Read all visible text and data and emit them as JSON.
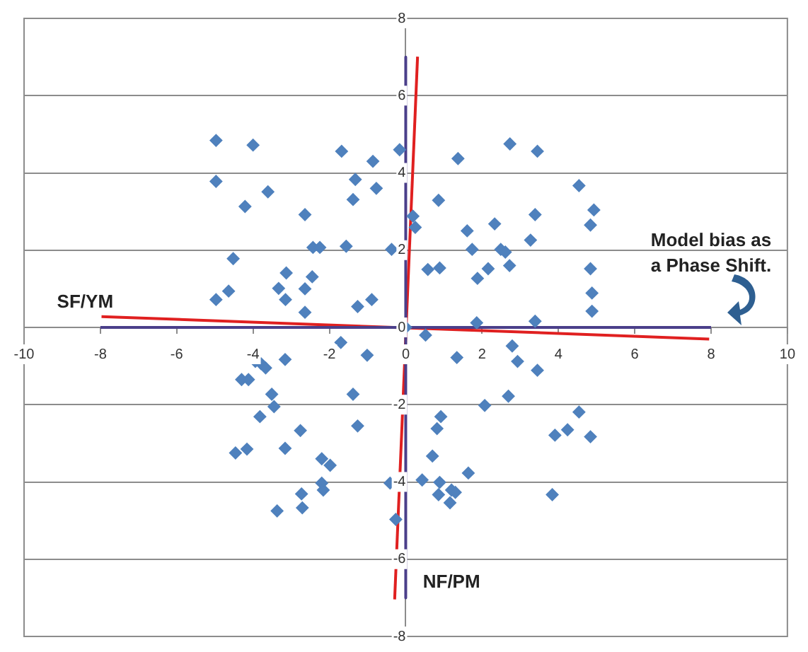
{
  "chart_data": {
    "type": "scatter",
    "xlim": [
      -10,
      10
    ],
    "ylim": [
      -8,
      8
    ],
    "xticks": [
      -10,
      -8,
      -6,
      -4,
      -2,
      0,
      2,
      4,
      6,
      8,
      10
    ],
    "yticks": [
      -8,
      -6,
      -4,
      -2,
      0,
      2,
      4,
      6,
      8
    ],
    "grid": "y",
    "legend": false,
    "annotations": [
      "SF/YM",
      "Model bias as a Phase Shift.",
      "NF/PM"
    ],
    "series": [
      {
        "marker": "diamond",
        "color": "#4f81bd",
        "x": [
          -4.97,
          -4.0,
          -1.68,
          -0.16,
          -0.86,
          -4.97,
          -1.32,
          -0.77,
          -3.61,
          -1.38,
          -4.21,
          -2.64,
          0.19,
          0.25,
          -2.43,
          -2.25,
          -1.56,
          -0.37,
          -4.52,
          -3.13,
          -2.45,
          -3.33,
          -2.64,
          -4.64,
          -4.97,
          -3.15,
          -0.89,
          -1.26,
          -2.64,
          0,
          2.73,
          3.45,
          1.37,
          4.54,
          0.86,
          4.93,
          3.39,
          2.33,
          4.84,
          1.61,
          3.27,
          1.74,
          2.49,
          2.61,
          2.72,
          0.58,
          0.89,
          2.16,
          4.84,
          1.88,
          4.88,
          4.88,
          1.86,
          3.39,
          -1.7,
          -1.01,
          -3.16,
          -3.94,
          -3.79,
          -3.67,
          -4.3,
          -4.12,
          -3.51,
          -1.38,
          -3.45,
          -3.82,
          -1.26,
          -2.76,
          -4.46,
          -4.16,
          -3.16,
          -2.2,
          -1.98,
          -0.41,
          -2.2,
          -2.16,
          -2.73,
          -3.37,
          -2.71,
          -0.26,
          0.52,
          2.79,
          2.93,
          1.34,
          3.45,
          2.69,
          2.07,
          4.54,
          0.92,
          0.82,
          4.24,
          3.91,
          4.84,
          0.7,
          1.64,
          0.43,
          0.89,
          0.86,
          1.2,
          1.3,
          1.16,
          3.84
        ],
        "values": [
          4.84,
          4.72,
          4.56,
          4.6,
          4.3,
          3.78,
          3.83,
          3.6,
          3.51,
          3.31,
          3.13,
          2.92,
          2.88,
          2.59,
          2.07,
          2.07,
          2.1,
          2.02,
          1.78,
          1.41,
          1.31,
          1.01,
          1.0,
          0.94,
          0.72,
          0.72,
          0.72,
          0.54,
          0.39,
          0,
          4.75,
          4.56,
          4.37,
          3.67,
          3.29,
          3.04,
          2.92,
          2.68,
          2.65,
          2.5,
          2.26,
          2.02,
          2.02,
          1.95,
          1.6,
          1.5,
          1.54,
          1.52,
          1.52,
          1.27,
          0.89,
          0.42,
          0.12,
          0.16,
          -0.39,
          -0.72,
          -0.83,
          -0.88,
          -0.94,
          -1.05,
          -1.35,
          -1.35,
          -1.73,
          -1.73,
          -2.05,
          -2.31,
          -2.55,
          -2.67,
          -3.25,
          -3.15,
          -3.13,
          -3.4,
          -3.57,
          -4.03,
          -4.03,
          -4.21,
          -4.31,
          -4.75,
          -4.67,
          -4.97,
          -0.2,
          -0.48,
          -0.88,
          -0.78,
          -1.11,
          -1.78,
          -2.02,
          -2.19,
          -2.31,
          -2.62,
          -2.65,
          -2.79,
          -2.83,
          -3.33,
          -3.77,
          -3.95,
          -4.01,
          -4.33,
          -4.21,
          -4.27,
          -4.54,
          -4.33
        ]
      },
      {
        "type": "line",
        "color": "#4b3f8a",
        "x": [
          0,
          0
        ],
        "values": [
          7,
          -7
        ]
      },
      {
        "type": "line",
        "color": "#4b3f8a",
        "x": [
          -8,
          8
        ],
        "values": [
          0,
          0
        ]
      },
      {
        "type": "line",
        "color": "#e02020",
        "x": [
          -7.97,
          7.95
        ],
        "values": [
          0.28,
          -0.3
        ]
      },
      {
        "type": "line",
        "color": "#e02020",
        "x": [
          0.31,
          -0.29
        ],
        "values": [
          7.01,
          -7.04
        ]
      }
    ]
  }
}
